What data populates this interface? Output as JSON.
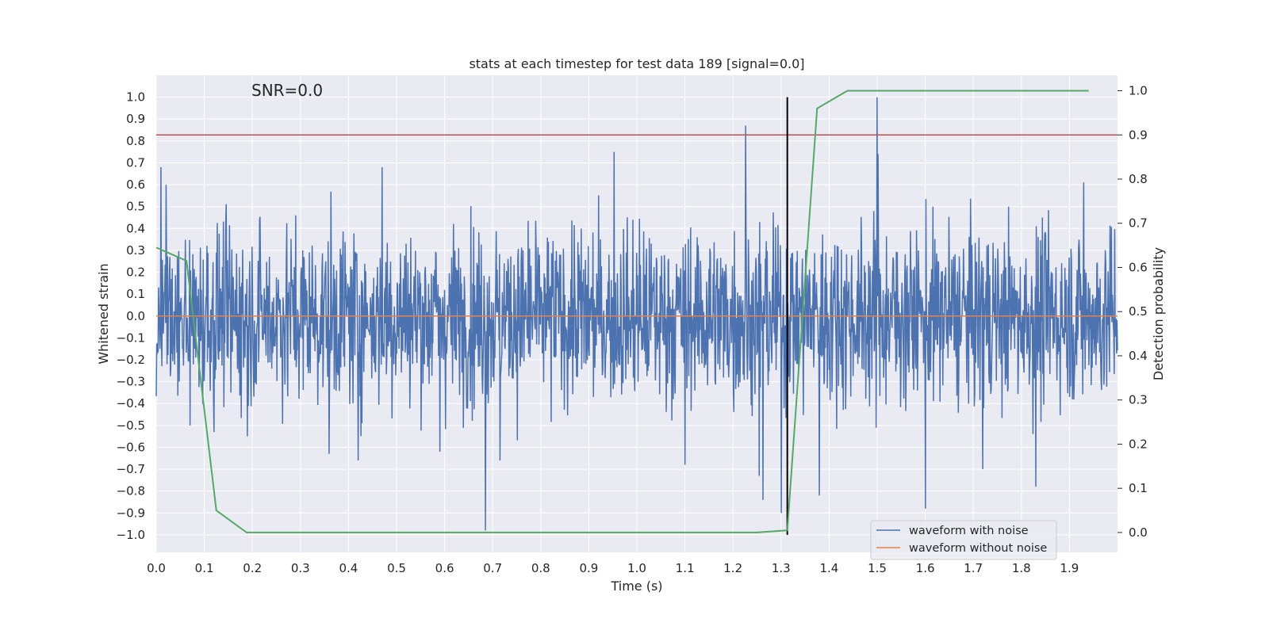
{
  "chart_data": {
    "type": "line",
    "title": "stats at each timestep for test data 189 [signal=0.0]",
    "annotation": "SNR=0.0",
    "xlabel": "Time (s)",
    "ylabel": "Whitened strain",
    "y2label": "Detection probability",
    "xlim": [
      0.0,
      2.0
    ],
    "ylim": [
      -1.08,
      1.1
    ],
    "y2lim": [
      -0.045,
      1.035
    ],
    "x_ticks": [
      0.0,
      0.1,
      0.2,
      0.3,
      0.4,
      0.5,
      0.6,
      0.7,
      0.8,
      0.9,
      1.0,
      1.1,
      1.2,
      1.3,
      1.4,
      1.5,
      1.6,
      1.7,
      1.8,
      1.9
    ],
    "x_tick_labels": [
      "0.0",
      "0.1",
      "0.2",
      "0.3",
      "0.4",
      "0.5",
      "0.6",
      "0.7",
      "0.8",
      "0.9",
      "1.0",
      "1.1",
      "1.2",
      "1.3",
      "1.4",
      "1.5",
      "1.6",
      "1.7",
      "1.8",
      "1.9"
    ],
    "y_ticks": [
      1.0,
      0.9,
      0.8,
      0.7,
      0.6,
      0.5,
      0.4,
      0.3,
      0.2,
      0.1,
      0.0,
      -0.1,
      -0.2,
      -0.3,
      -0.4,
      -0.5,
      -0.6,
      -0.7,
      -0.8,
      -0.9,
      -1.0
    ],
    "y_tick_labels": [
      "1.0",
      "0.9",
      "0.8",
      "0.7",
      "0.6",
      "0.5",
      "0.4",
      "0.3",
      "0.2",
      "0.1",
      "0.0",
      "−0.1",
      "−0.2",
      "−0.3",
      "−0.4",
      "−0.5",
      "−0.6",
      "−0.7",
      "−0.8",
      "−0.9",
      "−1.0"
    ],
    "y2_ticks": [
      1.0,
      0.9,
      0.8,
      0.7,
      0.6,
      0.5,
      0.4,
      0.3,
      0.2,
      0.1,
      0.0
    ],
    "y2_tick_labels": [
      "1.0",
      "0.9",
      "0.8",
      "0.7",
      "0.6",
      "0.5",
      "0.4",
      "0.3",
      "0.2",
      "0.1",
      "0.0"
    ],
    "grid": true,
    "legend_position": "lower-right",
    "colors": {
      "background": "#eaeaf2",
      "grid": "#ffffff",
      "noisy": "#4c72b0",
      "clean": "#dd8452",
      "probability": "#55a868",
      "threshold": "#c44e52",
      "marker": "#000000"
    },
    "series": [
      {
        "name": "waveform with noise",
        "axis": "left",
        "sampling": {
          "n_samples": 2048,
          "x_start": 0.0,
          "x_end": 2.0,
          "rms": 0.2
        },
        "peaks": [
          {
            "x": 0.01,
            "y": 0.68
          },
          {
            "x": 0.07,
            "y": -0.5
          },
          {
            "x": 0.12,
            "y": -0.53
          },
          {
            "x": 0.19,
            "y": -0.55
          },
          {
            "x": 0.36,
            "y": -0.63
          },
          {
            "x": 0.42,
            "y": -0.66
          },
          {
            "x": 0.47,
            "y": 0.68
          },
          {
            "x": 0.59,
            "y": -0.62
          },
          {
            "x": 0.685,
            "y": -0.98
          },
          {
            "x": 0.715,
            "y": -0.66
          },
          {
            "x": 0.953,
            "y": 0.75
          },
          {
            "x": 1.1,
            "y": -0.68
          },
          {
            "x": 1.226,
            "y": 0.87
          },
          {
            "x": 1.255,
            "y": -0.73
          },
          {
            "x": 1.262,
            "y": -0.84
          },
          {
            "x": 1.3,
            "y": -0.9
          },
          {
            "x": 1.38,
            "y": -0.82
          },
          {
            "x": 1.5,
            "y": 1.0
          },
          {
            "x": 1.502,
            "y": 0.74
          },
          {
            "x": 1.6,
            "y": -0.88
          },
          {
            "x": 1.72,
            "y": -0.7
          },
          {
            "x": 1.83,
            "y": -0.78
          },
          {
            "x": 1.93,
            "y": 0.61
          }
        ]
      },
      {
        "name": "waveform without noise",
        "axis": "left",
        "x": [
          0.0,
          2.0
        ],
        "y": [
          0.0,
          0.0
        ]
      },
      {
        "axis": "right",
        "x": [
          0.0,
          0.063,
          0.125,
          0.188,
          0.25,
          0.5,
          0.75,
          1.0,
          1.25,
          1.313,
          1.375,
          1.438,
          1.5,
          1.75,
          1.94
        ],
        "y": [
          0.645,
          0.615,
          0.05,
          0.0,
          0.0,
          0.0,
          0.0,
          0.0,
          0.0,
          0.005,
          0.96,
          1.0,
          1.0,
          1.0,
          1.0
        ]
      }
    ],
    "threshold": {
      "axis": "right",
      "y": 0.9
    },
    "marker_line": {
      "x": 1.313,
      "y_range": [
        -1.0,
        1.0
      ]
    }
  }
}
